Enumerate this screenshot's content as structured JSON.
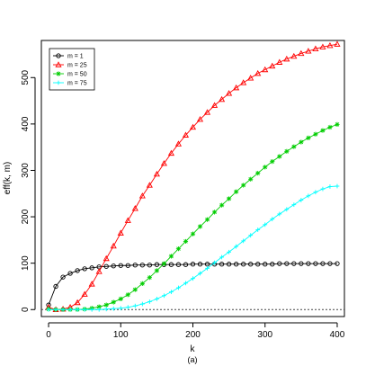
{
  "chart_data": {
    "type": "line",
    "xlabel": "k",
    "ylabel": "eff(k, m)",
    "caption": "(a)",
    "xlim": [
      -10,
      410
    ],
    "ylim": [
      -15,
      580
    ],
    "xticks": [
      0,
      100,
      200,
      300,
      400
    ],
    "yticks": [
      0,
      100,
      200,
      300,
      400,
      500
    ],
    "grid": false,
    "legend_position": "top-left",
    "reference_line": {
      "y": 0,
      "style": "dotted",
      "color": "#444444"
    },
    "series": [
      {
        "name": "m = 1",
        "color": "#000000",
        "marker": "circle",
        "x": [
          0,
          10,
          20,
          30,
          40,
          50,
          60,
          70,
          80,
          90,
          100,
          110,
          120,
          130,
          140,
          150,
          160,
          170,
          180,
          190,
          200,
          210,
          220,
          230,
          240,
          250,
          260,
          270,
          280,
          290,
          300,
          310,
          320,
          330,
          340,
          350,
          360,
          370,
          380,
          390,
          400
        ],
        "values": [
          10,
          50,
          70,
          78,
          84,
          88,
          90,
          92,
          93,
          94,
          95,
          95,
          96,
          96,
          96,
          97,
          97,
          97,
          97,
          97,
          98,
          98,
          98,
          98,
          98,
          98,
          98,
          98,
          98,
          98,
          98,
          98,
          99,
          99,
          99,
          99,
          99,
          99,
          99,
          99,
          99
        ]
      },
      {
        "name": "m = 25",
        "color": "#ff0000",
        "marker": "triangle",
        "x": [
          0,
          10,
          20,
          30,
          40,
          50,
          60,
          70,
          80,
          90,
          100,
          110,
          120,
          130,
          140,
          150,
          160,
          170,
          180,
          190,
          200,
          210,
          220,
          230,
          240,
          250,
          260,
          270,
          280,
          290,
          300,
          310,
          320,
          330,
          340,
          350,
          360,
          370,
          380,
          390,
          400
        ],
        "values": [
          5,
          0,
          1,
          5,
          15,
          33,
          55,
          82,
          110,
          137,
          165,
          192,
          218,
          245,
          268,
          292,
          315,
          337,
          357,
          376,
          393,
          410,
          425,
          440,
          453,
          466,
          478,
          489,
          499,
          509,
          517,
          525,
          533,
          540,
          546,
          552,
          557,
          562,
          566,
          569,
          572
        ]
      },
      {
        "name": "m = 50",
        "color": "#00cd00",
        "marker": "asterisk",
        "x": [
          0,
          10,
          20,
          30,
          40,
          50,
          60,
          70,
          80,
          90,
          100,
          110,
          120,
          130,
          140,
          150,
          160,
          170,
          180,
          190,
          200,
          210,
          220,
          230,
          240,
          250,
          260,
          270,
          280,
          290,
          300,
          310,
          320,
          330,
          340,
          350,
          360,
          370,
          380,
          390,
          400
        ],
        "values": [
          1,
          0,
          0,
          0,
          0,
          1,
          3,
          6,
          10,
          16,
          23,
          32,
          43,
          56,
          69,
          84,
          99,
          115,
          131,
          147,
          163,
          179,
          194,
          210,
          225,
          239,
          254,
          268,
          281,
          294,
          307,
          319,
          330,
          341,
          351,
          361,
          370,
          378,
          386,
          393,
          399
        ]
      },
      {
        "name": "m = 75",
        "color": "#00ffff",
        "marker": "plus",
        "x": [
          0,
          10,
          20,
          30,
          40,
          50,
          60,
          70,
          80,
          90,
          100,
          110,
          120,
          130,
          140,
          150,
          160,
          170,
          180,
          190,
          200,
          210,
          220,
          230,
          240,
          250,
          260,
          270,
          280,
          290,
          300,
          310,
          320,
          330,
          340,
          350,
          360,
          370,
          380,
          390,
          400
        ],
        "values": [
          0,
          0,
          0,
          0,
          0,
          0,
          0,
          0,
          1,
          2,
          3,
          5,
          8,
          12,
          17,
          23,
          30,
          38,
          47,
          57,
          67,
          78,
          89,
          101,
          113,
          124,
          136,
          148,
          160,
          172,
          183,
          195,
          206,
          216,
          226,
          236,
          245,
          253,
          260,
          265,
          266
        ]
      }
    ]
  }
}
